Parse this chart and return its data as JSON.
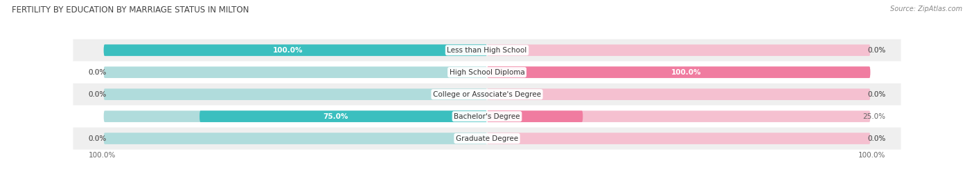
{
  "title": "FERTILITY BY EDUCATION BY MARRIAGE STATUS IN MILTON",
  "source": "Source: ZipAtlas.com",
  "categories": [
    "Less than High School",
    "High School Diploma",
    "College or Associate's Degree",
    "Bachelor's Degree",
    "Graduate Degree"
  ],
  "married": [
    100.0,
    0.0,
    0.0,
    75.0,
    0.0
  ],
  "unmarried": [
    0.0,
    100.0,
    0.0,
    25.0,
    0.0
  ],
  "married_color": "#3bbfbf",
  "unmarried_color": "#f07ca0",
  "married_light": "#b0dcdc",
  "unmarried_light": "#f5c0d0",
  "label_color": "#666666",
  "title_color": "#444444",
  "source_color": "#888888",
  "bar_height": 0.52,
  "figsize": [
    14.06,
    2.68
  ],
  "dpi": 100
}
